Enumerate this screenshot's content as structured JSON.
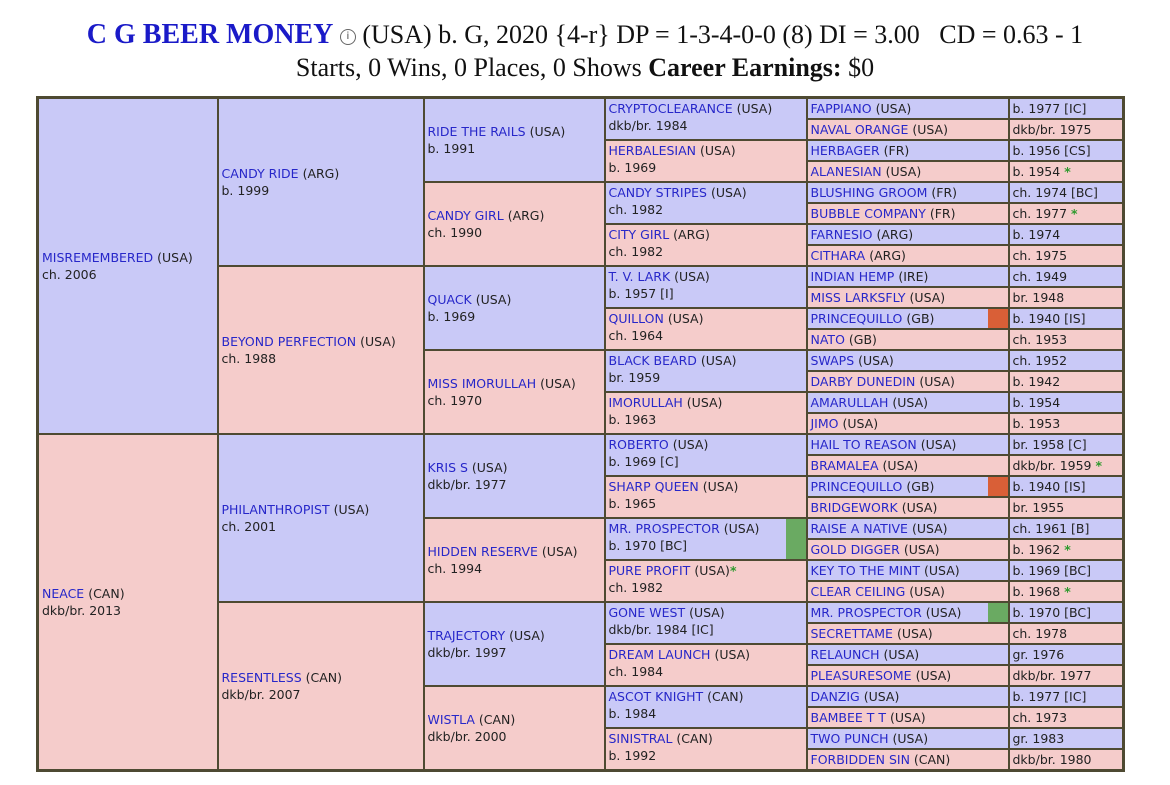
{
  "header": {
    "horse_name": "C G BEER MONEY",
    "info_icon": "info-circle-icon",
    "line1_rest": "(USA) b. G, 2020 {4-r} DP = 1-3-4-0-0 (8) DI = 3.00   CD = 0.63 - 1",
    "line2_prefix": "Starts, 0 Wins, 0 Places, 0 Shows",
    "earnings_label": "Career Earnings:",
    "earnings_value": "$0"
  },
  "colors": {
    "male": "#c9c9f7",
    "female": "#f5cccb",
    "link": "#2727c9",
    "green_marker": "#6aaa62",
    "orange_marker": "#d95f37",
    "star": "#2e9a2e"
  },
  "pedigree": {
    "gen1": [
      {
        "name": "MISREMEMBERED",
        "country": "(USA)",
        "info": "ch. 2006"
      },
      {
        "name": "NEACE",
        "country": "(CAN)",
        "info": "dkb/br. 2013"
      }
    ],
    "gen2": [
      {
        "name": "CANDY RIDE",
        "country": "(ARG)",
        "info": "b. 1999"
      },
      {
        "name": "BEYOND PERFECTION",
        "country": "(USA)",
        "info": "ch. 1988"
      },
      {
        "name": "PHILANTHROPIST",
        "country": "(USA)",
        "info": "ch. 2001"
      },
      {
        "name": "RESENTLESS",
        "country": "(CAN)",
        "info": "dkb/br. 2007"
      }
    ],
    "gen3": [
      {
        "name": "RIDE THE RAILS",
        "country": "(USA)",
        "info": "b. 1991"
      },
      {
        "name": "CANDY GIRL",
        "country": "(ARG)",
        "info": "ch. 1990"
      },
      {
        "name": "QUACK",
        "country": "(USA)",
        "info": "b. 1969"
      },
      {
        "name": "MISS IMORULLAH",
        "country": "(USA)",
        "info": "ch. 1970"
      },
      {
        "name": "KRIS S",
        "country": "(USA)",
        "info": "dkb/br. 1977"
      },
      {
        "name": "HIDDEN RESERVE",
        "country": "(USA)",
        "info": "ch. 1994"
      },
      {
        "name": "TRAJECTORY",
        "country": "(USA)",
        "info": "dkb/br. 1997"
      },
      {
        "name": "WISTLA",
        "country": "(CAN)",
        "info": "dkb/br. 2000"
      }
    ],
    "gen4": [
      {
        "name": "CRYPTOCLEARANCE",
        "country": "(USA)",
        "info": "dkb/br. 1984"
      },
      {
        "name": "HERBALESIAN",
        "country": "(USA)",
        "info": "b. 1969"
      },
      {
        "name": "CANDY STRIPES",
        "country": "(USA)",
        "info": "ch. 1982"
      },
      {
        "name": "CITY GIRL",
        "country": "(ARG)",
        "info": "ch. 1982"
      },
      {
        "name": "T. V. LARK",
        "country": "(USA)",
        "info": "b. 1957 [I]"
      },
      {
        "name": "QUILLON",
        "country": "(USA)",
        "info": "ch. 1964"
      },
      {
        "name": "BLACK BEARD",
        "country": "(USA)",
        "info": "br. 1959"
      },
      {
        "name": "IMORULLAH",
        "country": "(USA)",
        "info": "b. 1963"
      },
      {
        "name": "ROBERTO",
        "country": "(USA)",
        "info": "b. 1969 [C]"
      },
      {
        "name": "SHARP QUEEN",
        "country": "(USA)",
        "info": "b. 1965"
      },
      {
        "name": "MR. PROSPECTOR",
        "country": "(USA)",
        "info": "b. 1970 [BC]",
        "marker": "green"
      },
      {
        "name": "PURE PROFIT",
        "country": "(USA)",
        "info": "ch. 1982",
        "star": "*"
      },
      {
        "name": "GONE WEST",
        "country": "(USA)",
        "info": "dkb/br. 1984 [IC]"
      },
      {
        "name": "DREAM LAUNCH",
        "country": "(USA)",
        "info": "ch. 1984"
      },
      {
        "name": "ASCOT KNIGHT",
        "country": "(CAN)",
        "info": "b. 1984"
      },
      {
        "name": "SINISTRAL",
        "country": "(CAN)",
        "info": "b. 1992"
      }
    ],
    "gen5": [
      {
        "name": "FAPPIANO",
        "country": "(USA)",
        "info": "b. 1977 [IC]"
      },
      {
        "name": "NAVAL ORANGE",
        "country": "(USA)",
        "info": "dkb/br. 1975"
      },
      {
        "name": "HERBAGER",
        "country": "(FR)",
        "info": "b. 1956 [CS]"
      },
      {
        "name": "ALANESIAN",
        "country": "(USA)",
        "info": "b. 1954",
        "star": "*"
      },
      {
        "name": "BLUSHING GROOM",
        "country": "(FR)",
        "info": "ch. 1974 [BC]"
      },
      {
        "name": "BUBBLE COMPANY",
        "country": "(FR)",
        "info": "ch. 1977",
        "star": "*"
      },
      {
        "name": "FARNESIO",
        "country": "(ARG)",
        "info": "b. 1974"
      },
      {
        "name": "CITHARA",
        "country": "(ARG)",
        "info": "ch. 1975"
      },
      {
        "name": "INDIAN HEMP",
        "country": "(IRE)",
        "info": "ch. 1949"
      },
      {
        "name": "MISS LARKSFLY",
        "country": "(USA)",
        "info": "br. 1948"
      },
      {
        "name": "PRINCEQUILLO",
        "country": "(GB)",
        "info": "b. 1940 [IS]",
        "marker": "orange"
      },
      {
        "name": "NATO",
        "country": "(GB)",
        "info": "ch. 1953"
      },
      {
        "name": "SWAPS",
        "country": "(USA)",
        "info": "ch. 1952"
      },
      {
        "name": "DARBY DUNEDIN",
        "country": "(USA)",
        "info": "b. 1942"
      },
      {
        "name": "AMARULLAH",
        "country": "(USA)",
        "info": "b. 1954"
      },
      {
        "name": "JIMO",
        "country": "(USA)",
        "info": "b. 1953"
      },
      {
        "name": "HAIL TO REASON",
        "country": "(USA)",
        "info": "br. 1958 [C]"
      },
      {
        "name": "BRAMALEA",
        "country": "(USA)",
        "info": "dkb/br. 1959",
        "star": "*"
      },
      {
        "name": "PRINCEQUILLO",
        "country": "(GB)",
        "info": "b. 1940 [IS]",
        "marker": "orange"
      },
      {
        "name": "BRIDGEWORK",
        "country": "(USA)",
        "info": "br. 1955"
      },
      {
        "name": "RAISE A NATIVE",
        "country": "(USA)",
        "info": "ch. 1961 [B]"
      },
      {
        "name": "GOLD DIGGER",
        "country": "(USA)",
        "info": "b. 1962",
        "star": "*"
      },
      {
        "name": "KEY TO THE MINT",
        "country": "(USA)",
        "info": "b. 1969 [BC]"
      },
      {
        "name": "CLEAR CEILING",
        "country": "(USA)",
        "info": "b. 1968",
        "star": "*"
      },
      {
        "name": "MR. PROSPECTOR",
        "country": "(USA)",
        "info": "b. 1970 [BC]",
        "marker": "green"
      },
      {
        "name": "SECRETTAME",
        "country": "(USA)",
        "info": "ch. 1978"
      },
      {
        "name": "RELAUNCH",
        "country": "(USA)",
        "info": "gr. 1976"
      },
      {
        "name": "PLEASURESOME",
        "country": "(USA)",
        "info": "dkb/br. 1977"
      },
      {
        "name": "DANZIG",
        "country": "(USA)",
        "info": "b. 1977 [IC]"
      },
      {
        "name": "BAMBEE T T",
        "country": "(USA)",
        "info": "ch. 1973"
      },
      {
        "name": "TWO PUNCH",
        "country": "(USA)",
        "info": "gr. 1983"
      },
      {
        "name": "FORBIDDEN SIN",
        "country": "(CAN)",
        "info": "dkb/br. 1980"
      }
    ]
  }
}
